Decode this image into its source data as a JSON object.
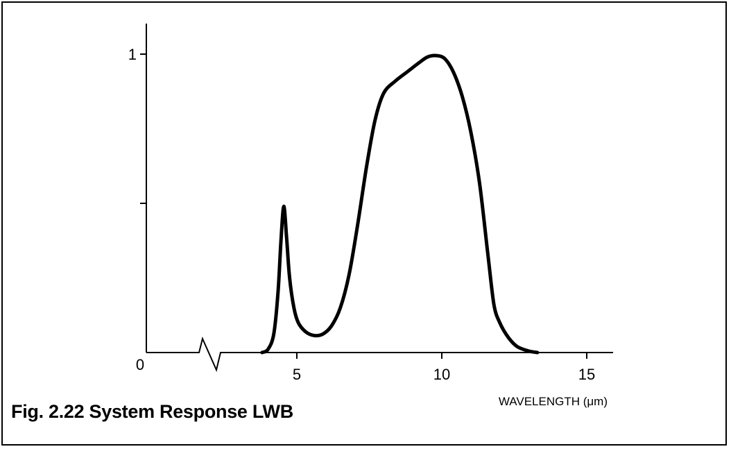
{
  "figure": {
    "caption": "Fig. 2.22 System Response LWB"
  },
  "chart_data": {
    "type": "line",
    "title": "Fig. 2.22 System Response LWB",
    "xlabel": "WAVELENGTH (μm)",
    "ylabel": "",
    "xlim": [
      0,
      16
    ],
    "ylim": [
      0,
      1
    ],
    "x_axis_break": true,
    "grid": false,
    "x_ticks": [
      {
        "value": 5,
        "label": "5"
      },
      {
        "value": 10,
        "label": "10"
      },
      {
        "value": 15,
        "label": "15"
      }
    ],
    "y_ticks": [
      {
        "value": 1,
        "label": "1"
      },
      {
        "value": 0.5,
        "label": ""
      }
    ],
    "origin_label": "0",
    "series": [
      {
        "color": "#000000",
        "points": [
          [
            3.8,
            0
          ],
          [
            4.0,
            0.01
          ],
          [
            4.2,
            0.06
          ],
          [
            4.35,
            0.2
          ],
          [
            4.45,
            0.37
          ],
          [
            4.55,
            0.49
          ],
          [
            4.65,
            0.38
          ],
          [
            4.75,
            0.25
          ],
          [
            4.9,
            0.15
          ],
          [
            5.05,
            0.1
          ],
          [
            5.3,
            0.07
          ],
          [
            5.6,
            0.057
          ],
          [
            5.9,
            0.062
          ],
          [
            6.2,
            0.09
          ],
          [
            6.5,
            0.15
          ],
          [
            6.8,
            0.26
          ],
          [
            7.1,
            0.43
          ],
          [
            7.4,
            0.62
          ],
          [
            7.7,
            0.78
          ],
          [
            8.0,
            0.87
          ],
          [
            8.4,
            0.91
          ],
          [
            8.8,
            0.94
          ],
          [
            9.2,
            0.97
          ],
          [
            9.5,
            0.99
          ],
          [
            9.8,
            0.995
          ],
          [
            10.1,
            0.985
          ],
          [
            10.4,
            0.94
          ],
          [
            10.7,
            0.86
          ],
          [
            11.0,
            0.74
          ],
          [
            11.3,
            0.57
          ],
          [
            11.6,
            0.32
          ],
          [
            11.8,
            0.16
          ],
          [
            12.0,
            0.1
          ],
          [
            12.3,
            0.05
          ],
          [
            12.6,
            0.02
          ],
          [
            13.0,
            0.005
          ],
          [
            13.3,
            0
          ]
        ]
      }
    ]
  }
}
